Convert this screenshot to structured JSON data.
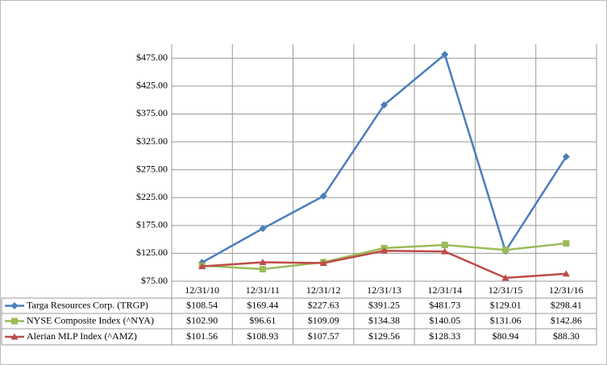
{
  "chart_data": {
    "type": "line",
    "categories": [
      "12/31/10",
      "12/31/11",
      "12/31/12",
      "12/31/13",
      "12/31/14",
      "12/31/15",
      "12/31/16"
    ],
    "ylim": [
      75,
      500
    ],
    "yticks": [
      {
        "value": 75,
        "label": "$75.00"
      },
      {
        "value": 125,
        "label": "$125.00"
      },
      {
        "value": 175,
        "label": "$175.00"
      },
      {
        "value": 225,
        "label": "$225.00"
      },
      {
        "value": 275,
        "label": "$275.00"
      },
      {
        "value": 325,
        "label": "$325.00"
      },
      {
        "value": 375,
        "label": "$375.00"
      },
      {
        "value": 425,
        "label": "$425.00"
      },
      {
        "value": 475,
        "label": "$475.00"
      }
    ],
    "grid": true,
    "series": [
      {
        "name": "Targa Resources Corp. (TRGP)",
        "color": "#4a7ebb",
        "marker": "diamond",
        "values": [
          108.54,
          169.44,
          227.63,
          391.25,
          481.73,
          129.01,
          298.41
        ],
        "value_labels": [
          "$108.54",
          "$169.44",
          "$227.63",
          "$391.25",
          "$481.73",
          "$129.01",
          "$298.41"
        ]
      },
      {
        "name": "NYSE Composite Index (^NYA)",
        "color": "#9bbb59",
        "marker": "square",
        "values": [
          102.9,
          96.61,
          109.09,
          134.38,
          140.05,
          131.06,
          142.86
        ],
        "value_labels": [
          "$102.90",
          "$96.61",
          "$109.09",
          "$134.38",
          "$140.05",
          "$131.06",
          "$142.86"
        ]
      },
      {
        "name": "Alerian MLP Index (^AMZ)",
        "color": "#be4b48",
        "marker": "triangle",
        "values": [
          101.56,
          108.93,
          107.57,
          129.56,
          128.33,
          80.94,
          88.3
        ],
        "value_labels": [
          "$101.56",
          "$108.93",
          "$107.57",
          "$129.56",
          "$128.33",
          "$80.94",
          "$88.30"
        ]
      }
    ]
  }
}
